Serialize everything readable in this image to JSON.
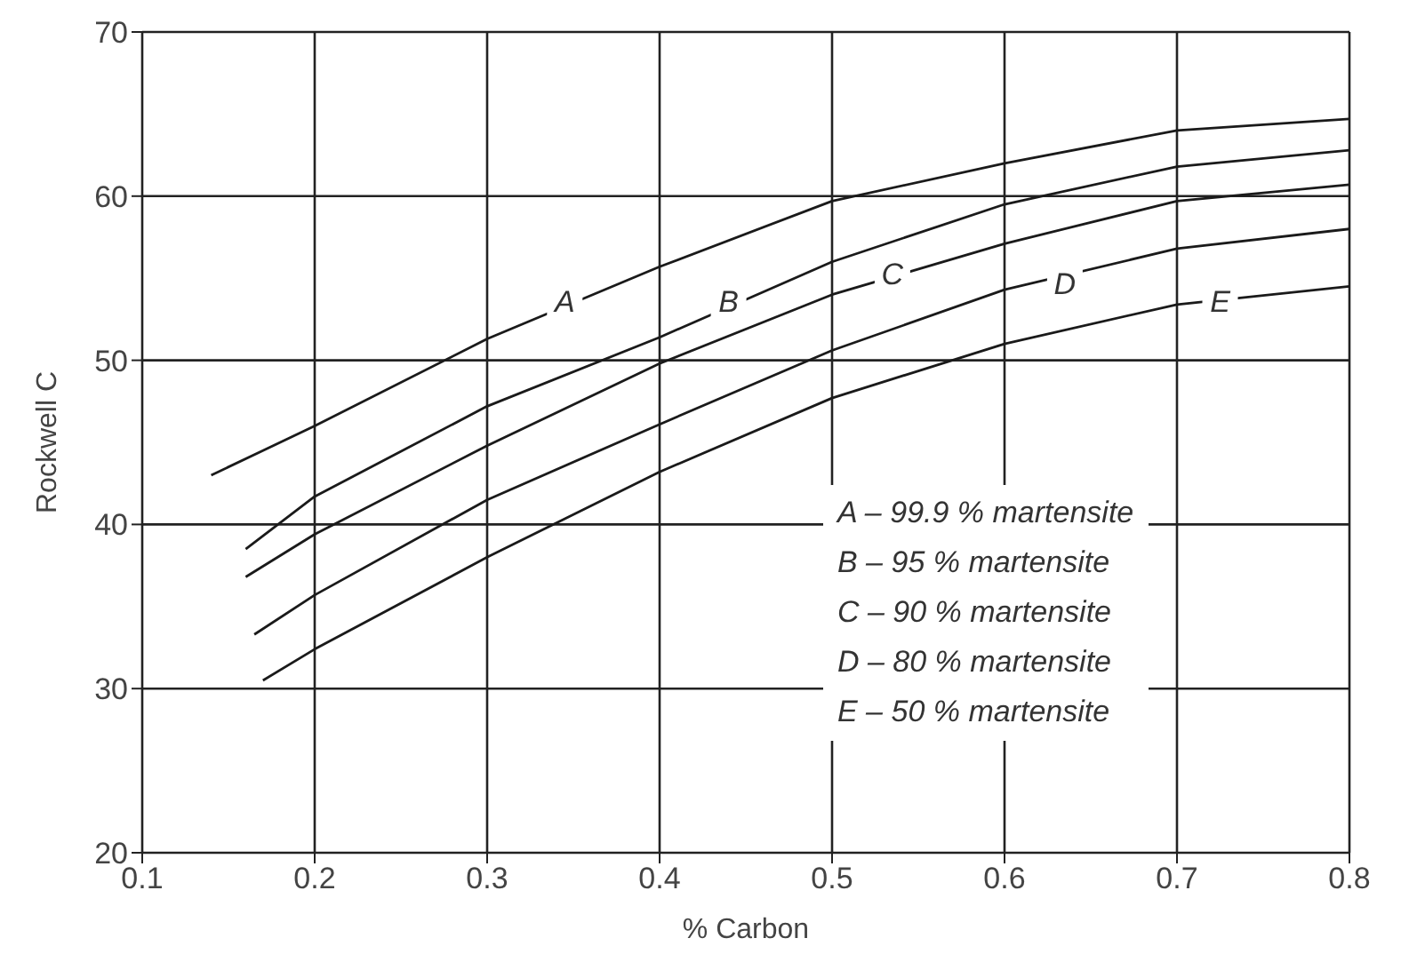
{
  "chart_data": {
    "type": "line",
    "xlabel": "% Carbon",
    "ylabel": "Rockwell C",
    "x": [
      0.14,
      0.2,
      0.3,
      0.4,
      0.5,
      0.6,
      0.7,
      0.8
    ],
    "series": [
      {
        "color": "#1a1a1a",
        "values": [
          43,
          46,
          51.3,
          55.7,
          59.7,
          62,
          64,
          64.7
        ]
      },
      {
        "color": "#1a1a1a",
        "x": [
          0.16,
          0.2,
          0.3,
          0.4,
          0.5,
          0.6,
          0.7,
          0.8
        ],
        "values": [
          38.5,
          41.7,
          47.2,
          51.4,
          56,
          59.5,
          61.8,
          62.8
        ]
      },
      {
        "color": "#1a1a1a",
        "x": [
          0.16,
          0.2,
          0.3,
          0.4,
          0.5,
          0.6,
          0.7,
          0.8
        ],
        "values": [
          36.8,
          39.4,
          44.8,
          49.8,
          54,
          57.1,
          59.7,
          60.7
        ]
      },
      {
        "color": "#1a1a1a",
        "x": [
          0.165,
          0.2,
          0.3,
          0.4,
          0.5,
          0.6,
          0.7,
          0.8
        ],
        "values": [
          33.3,
          35.7,
          41.5,
          46.1,
          50.6,
          54.3,
          56.8,
          58
        ]
      },
      {
        "color": "#1a1a1a",
        "x": [
          0.17,
          0.2,
          0.3,
          0.4,
          0.5,
          0.6,
          0.7,
          0.8
        ],
        "values": [
          30.5,
          32.4,
          38,
          43.2,
          47.7,
          51,
          53.4,
          54.5
        ]
      }
    ],
    "annotations": [
      {
        "text": "A",
        "x": 0.345,
        "y": 53.6
      },
      {
        "text": "B",
        "x": 0.44,
        "y": 53.6
      },
      {
        "text": "C",
        "x": 0.535,
        "y": 55.3
      },
      {
        "text": "D",
        "x": 0.635,
        "y": 54.7
      },
      {
        "text": "E",
        "x": 0.725,
        "y": 53.6
      },
      "A – 99.9 % martensite",
      "B – 95 % martensite",
      "C – 90 % martensite",
      "D – 80 % martensite",
      "E – 50 % martensite"
    ],
    "xlim": [
      0.1,
      0.8
    ],
    "xticks": [
      0.1,
      0.2,
      0.3,
      0.4,
      0.5,
      0.6,
      0.7,
      0.8
    ],
    "ylim": [
      20,
      70
    ],
    "yticks": [
      20,
      30,
      40,
      50,
      60,
      70
    ],
    "grid": true,
    "marker": "none",
    "line_style": "solid"
  }
}
